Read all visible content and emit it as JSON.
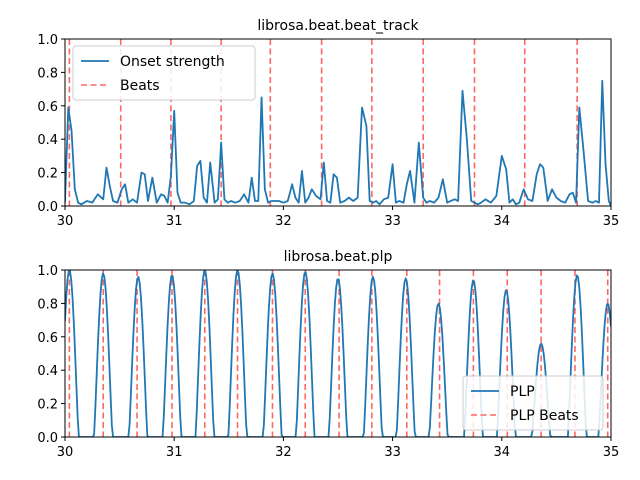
{
  "chart_data": [
    {
      "type": "line",
      "title": "librosa.beat.beat_track",
      "xlabel": "",
      "ylabel": "",
      "xlim": [
        30,
        35
      ],
      "ylim": [
        0,
        1.0
      ],
      "xticks": [
        30,
        31,
        32,
        33,
        34,
        35
      ],
      "yticks": [
        0.0,
        0.2,
        0.4,
        0.6,
        0.8,
        1.0
      ],
      "xtick_labels": [
        "30",
        "31",
        "32",
        "33",
        "34",
        "35"
      ],
      "ytick_labels": [
        "0.0",
        "0.2",
        "0.4",
        "0.6",
        "0.8",
        "1.0"
      ],
      "grid": false,
      "legend": {
        "position": "upper-left",
        "entries": [
          "Onset strength",
          "Beats"
        ]
      },
      "series": [
        {
          "name": "Onset strength",
          "style": "solid",
          "color": "#1f77b4",
          "x": [
            30.0,
            30.03,
            30.06,
            30.09,
            30.12,
            30.15,
            30.2,
            30.25,
            30.3,
            30.35,
            30.38,
            30.41,
            30.44,
            30.48,
            30.52,
            30.55,
            30.58,
            30.62,
            30.66,
            30.7,
            30.73,
            30.76,
            30.8,
            30.84,
            30.88,
            30.91,
            30.94,
            30.97,
            31.0,
            31.03,
            31.06,
            31.1,
            31.14,
            31.18,
            31.21,
            31.24,
            31.27,
            31.3,
            31.33,
            31.37,
            31.4,
            31.43,
            31.46,
            31.49,
            31.52,
            31.56,
            31.6,
            31.64,
            31.68,
            31.71,
            31.74,
            31.77,
            31.8,
            31.83,
            31.86,
            31.89,
            31.92,
            31.96,
            32.0,
            32.04,
            32.08,
            32.11,
            32.14,
            32.17,
            32.2,
            32.23,
            32.26,
            32.3,
            32.34,
            32.37,
            32.4,
            32.43,
            32.46,
            32.49,
            32.52,
            32.56,
            32.6,
            32.64,
            32.68,
            32.72,
            32.76,
            32.79,
            32.82,
            32.85,
            32.88,
            32.92,
            32.96,
            33.0,
            33.03,
            33.06,
            33.1,
            33.13,
            33.16,
            33.2,
            33.24,
            33.28,
            33.31,
            33.34,
            33.38,
            33.42,
            33.46,
            33.5,
            33.53,
            33.57,
            33.6,
            33.64,
            33.68,
            33.72,
            33.75,
            33.78,
            33.81,
            33.85,
            33.9,
            33.95,
            34.0,
            34.04,
            34.07,
            34.1,
            34.13,
            34.16,
            34.2,
            34.24,
            34.28,
            34.32,
            34.35,
            34.38,
            34.42,
            34.46,
            34.5,
            34.54,
            34.58,
            34.62,
            34.65,
            34.68,
            34.71,
            34.75,
            34.79,
            34.83,
            34.86,
            34.89,
            34.92,
            34.95,
            34.98,
            35.0
          ],
          "y": [
            0.02,
            0.59,
            0.45,
            0.1,
            0.02,
            0.01,
            0.03,
            0.02,
            0.07,
            0.04,
            0.23,
            0.12,
            0.03,
            0.02,
            0.1,
            0.13,
            0.02,
            0.04,
            0.02,
            0.2,
            0.19,
            0.03,
            0.17,
            0.02,
            0.07,
            0.06,
            0.02,
            0.18,
            0.57,
            0.08,
            0.02,
            0.02,
            0.01,
            0.03,
            0.24,
            0.27,
            0.05,
            0.02,
            0.26,
            0.02,
            0.04,
            0.38,
            0.04,
            0.02,
            0.03,
            0.02,
            0.03,
            0.07,
            0.02,
            0.17,
            0.03,
            0.03,
            0.65,
            0.1,
            0.02,
            0.03,
            0.03,
            0.03,
            0.02,
            0.03,
            0.13,
            0.05,
            0.02,
            0.21,
            0.02,
            0.05,
            0.1,
            0.06,
            0.04,
            0.26,
            0.03,
            0.02,
            0.19,
            0.17,
            0.02,
            0.03,
            0.05,
            0.03,
            0.05,
            0.59,
            0.48,
            0.03,
            0.02,
            0.03,
            0.01,
            0.04,
            0.05,
            0.25,
            0.02,
            0.03,
            0.02,
            0.13,
            0.21,
            0.02,
            0.38,
            0.05,
            0.02,
            0.03,
            0.02,
            0.05,
            0.16,
            0.02,
            0.03,
            0.04,
            0.03,
            0.69,
            0.4,
            0.03,
            0.02,
            0.01,
            0.02,
            0.04,
            0.02,
            0.06,
            0.3,
            0.22,
            0.02,
            0.04,
            0.01,
            0.02,
            0.1,
            0.04,
            0.03,
            0.19,
            0.25,
            0.23,
            0.03,
            0.1,
            0.05,
            0.03,
            0.02,
            0.07,
            0.08,
            0.02,
            0.59,
            0.32,
            0.03,
            0.02,
            0.03,
            0.02,
            0.75,
            0.25,
            0.03,
            0.0
          ],
          "points_pairs": true
        }
      ],
      "vlines": {
        "name": "Beats",
        "style": "dashed",
        "color": "#ff6666",
        "x": [
          30.04,
          30.51,
          30.97,
          31.43,
          31.88,
          32.35,
          32.81,
          33.28,
          33.75,
          34.21,
          34.69
        ]
      }
    },
    {
      "type": "line",
      "title": "librosa.beat.plp",
      "xlabel": "",
      "ylabel": "",
      "xlim": [
        30,
        35
      ],
      "ylim": [
        0,
        1.0
      ],
      "xticks": [
        30,
        31,
        32,
        33,
        34,
        35
      ],
      "yticks": [
        0.0,
        0.2,
        0.4,
        0.6,
        0.8,
        1.0
      ],
      "xtick_labels": [
        "30",
        "31",
        "32",
        "33",
        "34",
        "35"
      ],
      "ytick_labels": [
        "0.0",
        "0.2",
        "0.4",
        "0.6",
        "0.8",
        "1.0"
      ],
      "grid": false,
      "legend": {
        "position": "lower-right",
        "entries": [
          "PLP",
          "PLP Beats"
        ]
      },
      "series": [
        {
          "name": "PLP",
          "style": "solid",
          "color": "#1f77b4",
          "peaks": [
            {
              "x": 30.04,
              "y": 1.0
            },
            {
              "x": 30.35,
              "y": 0.98
            },
            {
              "x": 30.67,
              "y": 0.96
            },
            {
              "x": 30.98,
              "y": 0.97
            },
            {
              "x": 31.28,
              "y": 1.0
            },
            {
              "x": 31.58,
              "y": 1.0
            },
            {
              "x": 31.9,
              "y": 0.98
            },
            {
              "x": 32.2,
              "y": 0.99
            },
            {
              "x": 32.5,
              "y": 0.95
            },
            {
              "x": 32.82,
              "y": 0.96
            },
            {
              "x": 33.12,
              "y": 0.95
            },
            {
              "x": 33.42,
              "y": 0.8
            },
            {
              "x": 33.74,
              "y": 0.94
            },
            {
              "x": 34.04,
              "y": 0.88
            },
            {
              "x": 34.36,
              "y": 0.56
            },
            {
              "x": 34.69,
              "y": 0.97
            },
            {
              "x": 34.97,
              "y": 0.8
            }
          ],
          "half_width": 0.085
        }
      ],
      "vlines": {
        "name": "PLP Beats",
        "style": "dashed",
        "color": "#ff6666",
        "x": [
          30.04,
          30.35,
          30.66,
          30.98,
          31.28,
          31.58,
          31.9,
          32.2,
          32.51,
          32.81,
          33.13,
          33.43,
          33.74,
          34.05,
          34.36,
          34.67,
          34.97
        ]
      }
    }
  ]
}
